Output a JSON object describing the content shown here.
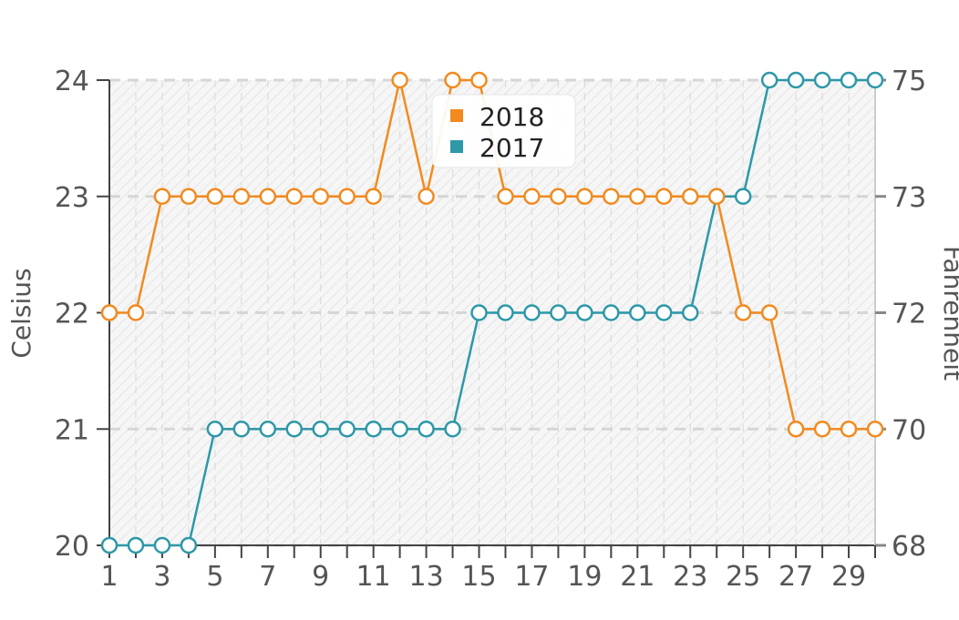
{
  "chart_data": {
    "type": "line",
    "title": "",
    "x": [
      1,
      2,
      3,
      4,
      5,
      6,
      7,
      8,
      9,
      10,
      11,
      12,
      13,
      14,
      15,
      16,
      17,
      18,
      19,
      20,
      21,
      22,
      23,
      24,
      25,
      26,
      27,
      28,
      29,
      30
    ],
    "x_tick_labels": [
      "1",
      "3",
      "5",
      "7",
      "9",
      "11",
      "13",
      "15",
      "17",
      "19",
      "21",
      "23",
      "25",
      "27",
      "29"
    ],
    "xlim": [
      1,
      30
    ],
    "ylabel": "Celsius",
    "ylim": [
      20,
      24
    ],
    "y_tick_labels": [
      "20",
      "21",
      "22",
      "23",
      "24"
    ],
    "y2label": "Fahrenheit",
    "y2_tick_labels": [
      "68",
      "70",
      "72",
      "73",
      "75"
    ],
    "legend_position": "top-center",
    "grid": true,
    "series": [
      {
        "name": "2018",
        "color": "#f28a1e",
        "values": [
          22,
          22,
          23,
          23,
          23,
          23,
          23,
          23,
          23,
          23,
          23,
          24,
          23,
          24,
          24,
          23,
          23,
          23,
          23,
          23,
          23,
          23,
          23,
          23,
          22,
          22,
          21,
          21,
          21,
          21
        ]
      },
      {
        "name": "2017",
        "color": "#2d98a8",
        "values": [
          20,
          20,
          20,
          20,
          21,
          21,
          21,
          21,
          21,
          21,
          21,
          21,
          21,
          21,
          22,
          22,
          22,
          22,
          22,
          22,
          22,
          22,
          22,
          23,
          23,
          24,
          24,
          24,
          24,
          24
        ]
      }
    ]
  }
}
